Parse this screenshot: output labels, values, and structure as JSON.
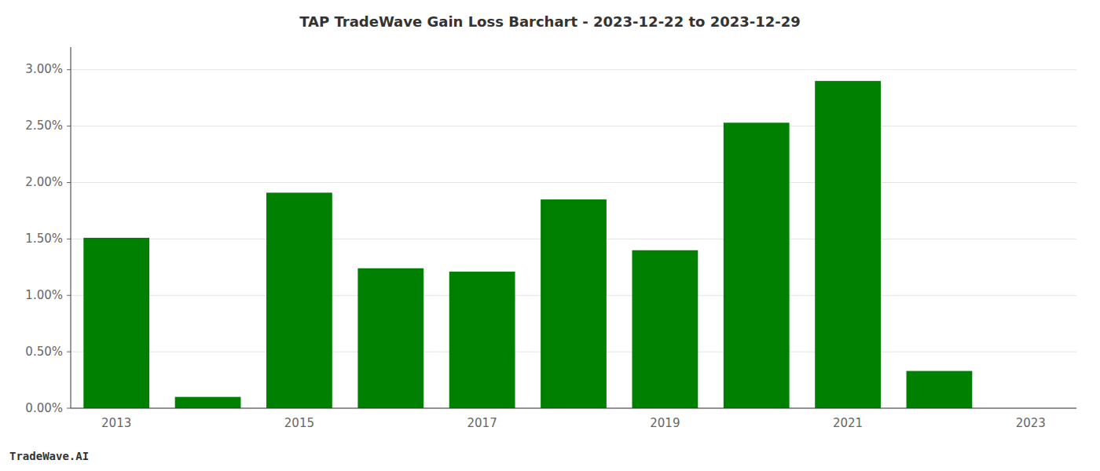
{
  "chart_data": {
    "type": "bar",
    "title": "TAP TradeWave Gain Loss Barchart - 2023-12-22 to 2023-12-29",
    "annotations": [
      "TradeWave.AI"
    ],
    "categories": [
      "2013",
      null,
      "2015",
      null,
      "2017",
      null,
      "2019",
      null,
      "2021",
      null,
      "2023"
    ],
    "values": [
      0.0151,
      0.001,
      0.0191,
      0.0124,
      0.0121,
      0.0185,
      0.014,
      0.0253,
      0.029,
      0.0033,
      0.0
    ],
    "color": "#008000",
    "ylim": [
      0.0,
      0.032
    ],
    "yticks": [
      {
        "value": 0.0,
        "label": "0.00%"
      },
      {
        "value": 0.005,
        "label": "0.50%"
      },
      {
        "value": 0.01,
        "label": "1.00%"
      },
      {
        "value": 0.015,
        "label": "1.50%"
      },
      {
        "value": 0.02,
        "label": "2.00%"
      },
      {
        "value": 0.025,
        "label": "2.50%"
      },
      {
        "value": 0.03,
        "label": "3.00%"
      }
    ],
    "grid": true
  }
}
